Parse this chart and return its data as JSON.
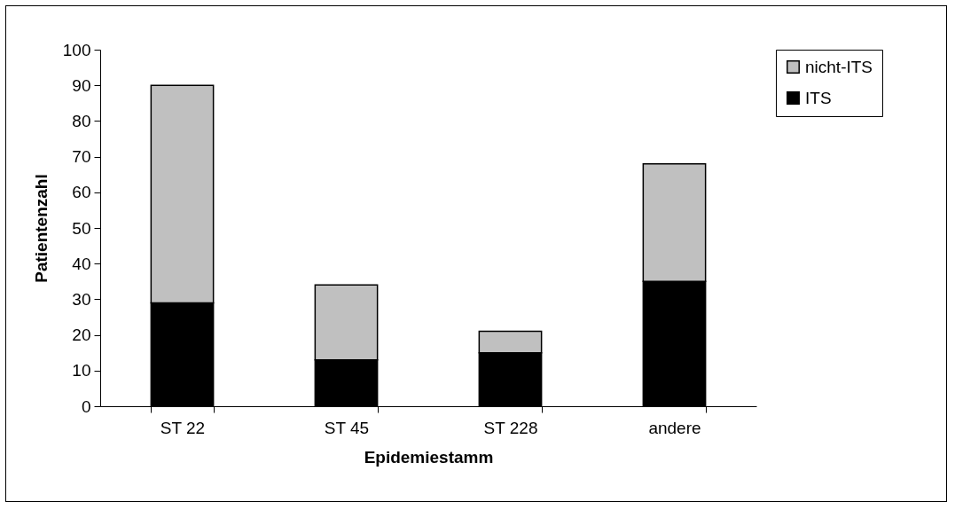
{
  "chart_data": {
    "type": "bar",
    "stacked": true,
    "xlabel": "Epidemiestamm",
    "ylabel": "Patientenzahl",
    "categories": [
      "ST 22",
      "ST 45",
      "ST 228",
      "andere"
    ],
    "series": [
      {
        "name": "ITS",
        "color": "#000000",
        "values": [
          29,
          13,
          15,
          35
        ]
      },
      {
        "name": "nicht-ITS",
        "color": "#c0c0c0",
        "values": [
          61,
          21,
          6,
          33
        ]
      }
    ],
    "ylim": [
      0,
      100
    ],
    "yticks": [
      0,
      10,
      20,
      30,
      40,
      50,
      60,
      70,
      80,
      90,
      100
    ],
    "grid": false,
    "legend": "right"
  }
}
